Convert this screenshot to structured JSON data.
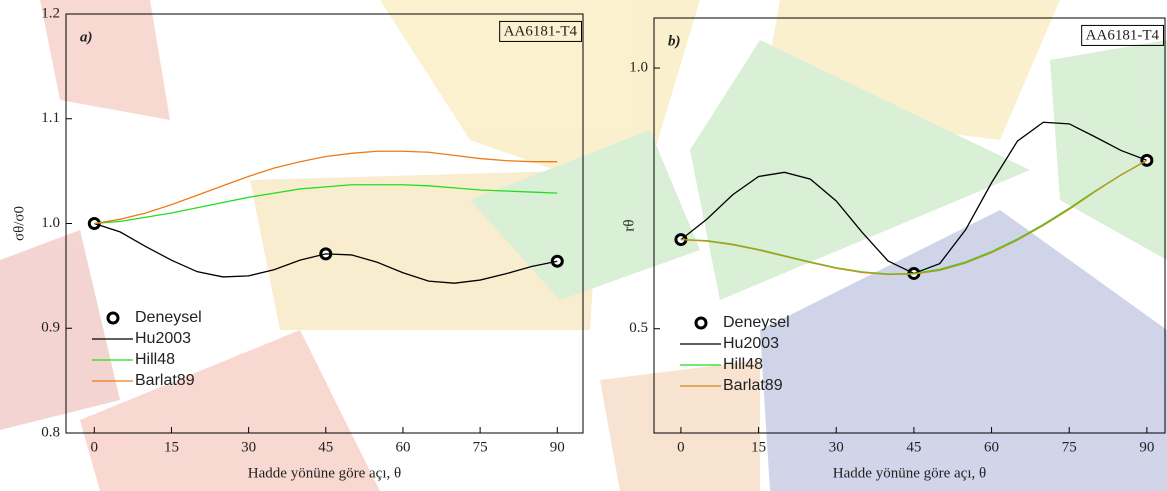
{
  "chart_data": [
    {
      "type": "line",
      "panel_label": "a)",
      "annotation": "AA6181-T4",
      "xlabel": "Hadde yönüne göre açı, θ",
      "ylabel": "σθ/σ0",
      "xlim": [
        -5.5,
        95
      ],
      "xticks": [
        0,
        15,
        30,
        45,
        60,
        75,
        90
      ],
      "ylim": [
        0.8,
        1.2
      ],
      "yticks": [
        0.8,
        0.9,
        {
          "value": 1.0,
          "label": "1.0"
        },
        1.1,
        1.2
      ],
      "series": [
        {
          "name": "Deneysel",
          "mode": "markers",
          "color": "#000000",
          "x": [
            0,
            45,
            90
          ],
          "values": [
            1.0,
            0.971,
            0.964
          ]
        },
        {
          "name": "Hu2003",
          "mode": "lines",
          "color": "#000000",
          "x": [
            0,
            5,
            10,
            15,
            20,
            25,
            30,
            35,
            40,
            45,
            50,
            55,
            60,
            65,
            70,
            75,
            80,
            85,
            90
          ],
          "values": [
            1.0,
            0.992,
            0.978,
            0.965,
            0.954,
            0.949,
            0.95,
            0.956,
            0.965,
            0.971,
            0.97,
            0.963,
            0.953,
            0.945,
            0.943,
            0.946,
            0.952,
            0.959,
            0.964
          ]
        },
        {
          "name": "Hill48",
          "mode": "lines",
          "color": "#22dd22",
          "x": [
            0,
            5,
            10,
            15,
            20,
            25,
            30,
            35,
            40,
            45,
            50,
            55,
            60,
            65,
            70,
            75,
            80,
            85,
            90
          ],
          "values": [
            1.0,
            1.002,
            1.006,
            1.01,
            1.015,
            1.02,
            1.025,
            1.029,
            1.033,
            1.035,
            1.037,
            1.037,
            1.037,
            1.036,
            1.034,
            1.032,
            1.031,
            1.03,
            1.029
          ]
        },
        {
          "name": "Barlat89",
          "mode": "lines",
          "color": "#ee7a1a",
          "x": [
            0,
            5,
            10,
            15,
            20,
            25,
            30,
            35,
            40,
            45,
            50,
            55,
            60,
            65,
            70,
            75,
            80,
            85,
            90
          ],
          "values": [
            1.0,
            1.004,
            1.01,
            1.018,
            1.027,
            1.036,
            1.045,
            1.053,
            1.059,
            1.064,
            1.067,
            1.069,
            1.069,
            1.068,
            1.065,
            1.062,
            1.06,
            1.059,
            1.059
          ]
        }
      ]
    },
    {
      "type": "line",
      "panel_label": "b)",
      "annotation": "AA6181-T4",
      "xlabel": "Hadde yönüne göre açı, θ",
      "ylabel": "rθ",
      "xlim": [
        -5.2,
        93.5
      ],
      "xticks": [
        0,
        15,
        30,
        45,
        60,
        75,
        90
      ],
      "ylim": [
        0.3,
        1.096
      ],
      "yticks": [
        0.5,
        {
          "value": 1.0,
          "label": "1.0"
        }
      ],
      "series": [
        {
          "name": "Deneysel",
          "mode": "markers",
          "color": "#000000",
          "x": [
            0,
            45,
            90
          ],
          "values": [
            0.671,
            0.606,
            0.823
          ]
        },
        {
          "name": "Hu2003",
          "mode": "lines",
          "color": "#000000",
          "x": [
            0,
            5,
            10,
            15,
            20,
            25,
            30,
            35,
            40,
            45,
            50,
            55,
            60,
            65,
            70,
            75,
            80,
            85,
            90
          ],
          "values": [
            0.671,
            0.71,
            0.757,
            0.792,
            0.8,
            0.787,
            0.745,
            0.685,
            0.63,
            0.606,
            0.625,
            0.69,
            0.78,
            0.86,
            0.896,
            0.893,
            0.868,
            0.842,
            0.823
          ]
        },
        {
          "name": "Hill48",
          "mode": "lines",
          "color": "#22dd22",
          "x": [
            0,
            5,
            10,
            15,
            20,
            25,
            30,
            35,
            40,
            45,
            50,
            55,
            60,
            65,
            70,
            75,
            80,
            85,
            90
          ],
          "values": [
            0.671,
            0.669,
            0.662,
            0.652,
            0.64,
            0.628,
            0.617,
            0.609,
            0.605,
            0.606,
            0.614,
            0.628,
            0.648,
            0.672,
            0.7,
            0.731,
            0.764,
            0.795,
            0.823
          ]
        },
        {
          "name": "Barlat89",
          "mode": "lines",
          "color": "#c8901a",
          "x": [
            0,
            5,
            10,
            15,
            20,
            25,
            30,
            35,
            40,
            45,
            50,
            55,
            60,
            65,
            70,
            75,
            80,
            85,
            90
          ],
          "values": [
            0.671,
            0.668,
            0.661,
            0.651,
            0.639,
            0.627,
            0.616,
            0.608,
            0.604,
            0.605,
            0.612,
            0.626,
            0.646,
            0.67,
            0.698,
            0.729,
            0.763,
            0.795,
            0.823
          ]
        }
      ]
    }
  ]
}
